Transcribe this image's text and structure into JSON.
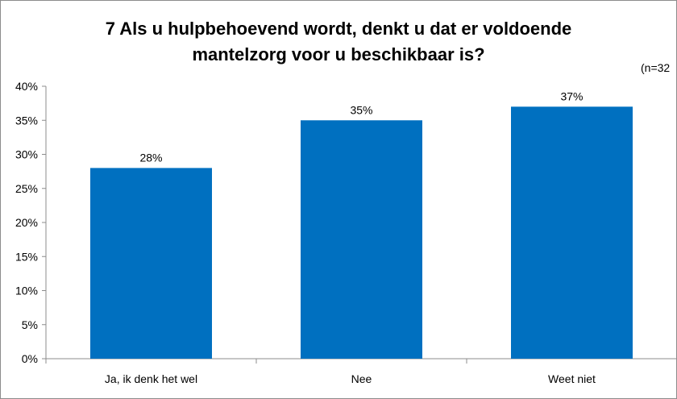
{
  "chart_data": {
    "type": "bar",
    "title_line1": "7 Als u hulpbehoevend wordt, denkt u dat er voldoende",
    "title_line2": "mantelzorg voor u beschikbaar is?",
    "note": "(n=32",
    "categories": [
      "Ja, ik denk het wel",
      "Nee",
      "Weet niet"
    ],
    "values": [
      28,
      35,
      37
    ],
    "data_labels": [
      "28%",
      "35%",
      "37%"
    ],
    "y_ticks": [
      "0%",
      "5%",
      "10%",
      "15%",
      "20%",
      "25%",
      "30%",
      "35%",
      "40%"
    ],
    "ylim": [
      0,
      40
    ],
    "grid": false,
    "legend": "none",
    "bar_color": "#0070c0",
    "axis_color": "#8c8c8c"
  }
}
